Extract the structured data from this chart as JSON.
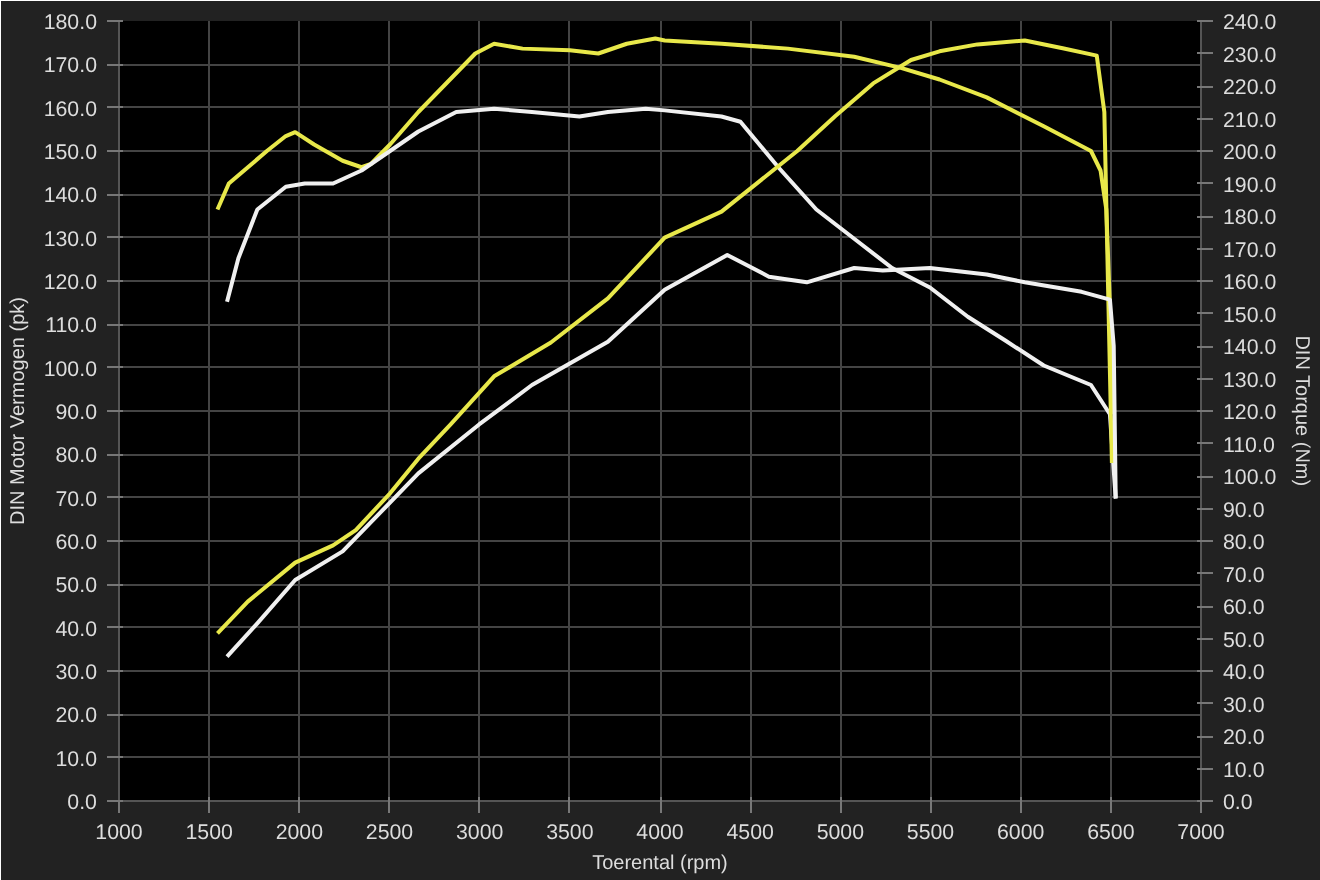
{
  "chart_data": {
    "type": "line",
    "xlabel": "Toerental (rpm)",
    "ylabel": "DIN Motor Vermogen (pk)",
    "y2label": "DIN Torque (Nm)",
    "xlim": [
      1000,
      7000
    ],
    "xticks": [
      1000,
      1500,
      2000,
      2500,
      3000,
      3500,
      4000,
      4500,
      5000,
      5500,
      6000,
      6500,
      7000
    ],
    "ylim": [
      0,
      180
    ],
    "yticks": [
      {
        "value": 0,
        "label": "0.0"
      },
      {
        "value": 10,
        "label": "10.0"
      },
      {
        "value": 20,
        "label": "20.0"
      },
      {
        "value": 30,
        "label": "30.0"
      },
      {
        "value": 40,
        "label": "40.0"
      },
      {
        "value": 50,
        "label": "50.0"
      },
      {
        "value": 60,
        "label": "60.0"
      },
      {
        "value": 70,
        "label": "70.0"
      },
      {
        "value": 80,
        "label": "80.0"
      },
      {
        "value": 90,
        "label": "90.0"
      },
      {
        "value": 100,
        "label": "100.0"
      },
      {
        "value": 110,
        "label": "110.0"
      },
      {
        "value": 120,
        "label": "120.0"
      },
      {
        "value": 130,
        "label": "130.0"
      },
      {
        "value": 140,
        "label": "140.0"
      },
      {
        "value": 150,
        "label": "150.0"
      },
      {
        "value": 160,
        "label": "160.0"
      },
      {
        "value": 170,
        "label": "170.0"
      },
      {
        "value": 180,
        "label": "180.0"
      }
    ],
    "y2lim": [
      0,
      240
    ],
    "y2ticks": [
      {
        "value": 0,
        "label": "0.0"
      },
      {
        "value": 10,
        "label": "10.0"
      },
      {
        "value": 20,
        "label": "20.0"
      },
      {
        "value": 30,
        "label": "30.0"
      },
      {
        "value": 40,
        "label": "40.0"
      },
      {
        "value": 50,
        "label": "50.0"
      },
      {
        "value": 60,
        "label": "60.0"
      },
      {
        "value": 70,
        "label": "70.0"
      },
      {
        "value": 80,
        "label": "80.0"
      },
      {
        "value": 90,
        "label": "90.0"
      },
      {
        "value": 100,
        "label": "100.0"
      },
      {
        "value": 110,
        "label": "110.0"
      },
      {
        "value": 120,
        "label": "120.0"
      },
      {
        "value": 130,
        "label": "130.0"
      },
      {
        "value": 140,
        "label": "140.0"
      },
      {
        "value": 150,
        "label": "150.0"
      },
      {
        "value": 160,
        "label": "160.0"
      },
      {
        "value": 170,
        "label": "170.0"
      },
      {
        "value": 180,
        "label": "180.0"
      },
      {
        "value": 190,
        "label": "190.0"
      },
      {
        "value": 200,
        "label": "200.0"
      },
      {
        "value": 210,
        "label": "210.0"
      },
      {
        "value": 220,
        "label": "220.0"
      },
      {
        "value": 230,
        "label": "230.0"
      },
      {
        "value": 240,
        "label": "240.0"
      }
    ],
    "grid": true,
    "marker": "none",
    "line_style": "solid",
    "series": [
      {
        "color": "#e8e84a",
        "axis": "y2",
        "x": [
          1546,
          1609,
          1820,
          1925,
          1977,
          2082,
          2240,
          2345,
          2397,
          2503,
          2660,
          2818,
          2976,
          3080,
          3238,
          3500,
          3658,
          3816,
          3974,
          4026,
          4341,
          4709,
          5077,
          5340,
          5550,
          5812,
          6128,
          6390,
          6443,
          6475,
          6495,
          6516
        ],
        "values": [
          182,
          190,
          200,
          204.6,
          205.8,
          202,
          197,
          195,
          196,
          202,
          212,
          221,
          230,
          233,
          231.5,
          231,
          230,
          233,
          234.6,
          234,
          233,
          231.5,
          229,
          225.5,
          222,
          216.5,
          207.6,
          200,
          194,
          182,
          152,
          119
        ]
      },
      {
        "color": "#f0f0f0",
        "axis": "y2",
        "x": [
          1599,
          1662,
          1767,
          1925,
          2030,
          2187,
          2345,
          2503,
          2660,
          2870,
          3080,
          3290,
          3553,
          3711,
          3921,
          4026,
          4341,
          4446,
          4656,
          4867,
          5077,
          5287,
          5497,
          5707,
          5917,
          6128,
          6390,
          6495,
          6527
        ],
        "values": [
          153.6,
          167,
          182,
          189,
          190,
          190,
          194,
          200,
          206,
          212,
          213,
          212,
          210.6,
          212,
          213,
          212.5,
          210.6,
          209,
          195,
          182,
          173,
          164,
          158,
          149,
          141.6,
          134,
          128,
          119,
          93
        ]
      },
      {
        "color": "#e8e84a",
        "x": [
          1546,
          1714,
          1977,
          2187,
          2313,
          2503,
          2660,
          2839,
          3080,
          3395,
          3711,
          4026,
          4341,
          4551,
          4761,
          4971,
          5182,
          5392,
          5550,
          5760,
          6023,
          6233,
          6422,
          6464,
          6485,
          6506
        ],
        "values": [
          38.7,
          46,
          55,
          59,
          62.5,
          71,
          79,
          86.9,
          98,
          105.8,
          116,
          130,
          136,
          143,
          150,
          158,
          165.6,
          171,
          173,
          174.6,
          175.5,
          173.7,
          172,
          159,
          118,
          78
        ]
      },
      {
        "color": "#f0f0f0",
        "x": [
          1599,
          1767,
          1977,
          2240,
          2450,
          2660,
          2997,
          3290,
          3711,
          4026,
          4373,
          4604,
          4814,
          5077,
          5235,
          5497,
          5812,
          6023,
          6338,
          6495,
          6516,
          6527
        ],
        "values": [
          33.3,
          41,
          51,
          57.6,
          66.6,
          75.6,
          86.9,
          96,
          106,
          118,
          126,
          121,
          119.7,
          123,
          122.4,
          123,
          121.5,
          119.7,
          117.5,
          115.7,
          105,
          70
        ]
      }
    ]
  }
}
